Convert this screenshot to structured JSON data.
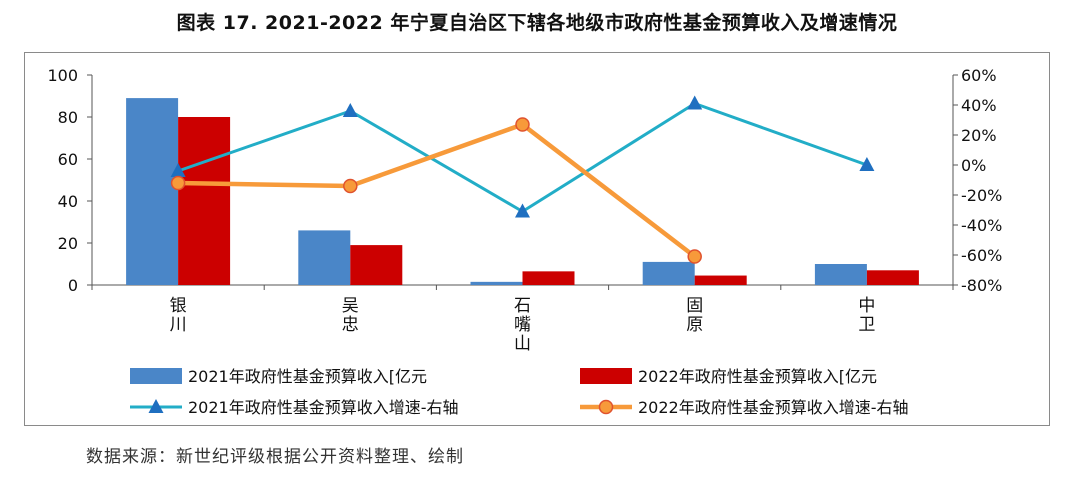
{
  "title": "图表 17. 2021-2022 年宁夏自治区下辖各地级市政府性基金预算收入及增速情况",
  "source": "数据来源：新世纪评级根据公开资料整理、绘制",
  "colors": {
    "bar_2021": "#4a86c8",
    "bar_2022": "#cc0000",
    "line_2021": "#22adc7",
    "line_2022": "#f79a3a",
    "marker_2021": "#1f6fc0",
    "marker_2022_edge": "#e0522e"
  },
  "chart_data": {
    "type": "bar+line",
    "categories": [
      "银川",
      "吴忠",
      "石嘴山",
      "固原",
      "中卫"
    ],
    "category_labels": [
      [
        "银",
        "川"
      ],
      [
        "吴",
        "忠"
      ],
      [
        "石",
        "嘴",
        "山"
      ],
      [
        "固",
        "原"
      ],
      [
        "中",
        "卫"
      ]
    ],
    "left_axis": {
      "ylim": [
        0,
        100
      ],
      "ticks": [
        0,
        20,
        40,
        60,
        80,
        100
      ]
    },
    "right_axis": {
      "ylim": [
        -80,
        60
      ],
      "ticks": [
        -80,
        -60,
        -40,
        -20,
        0,
        20,
        40,
        60
      ],
      "tick_labels": [
        "-80%",
        "-60%",
        "-40%",
        "-20%",
        "0%",
        "20%",
        "40%",
        "60%"
      ]
    },
    "series": [
      {
        "name": "2021年政府性基金预算收入[亿元",
        "type": "bar",
        "axis": "left",
        "values": [
          89,
          26,
          1.5,
          11,
          10
        ]
      },
      {
        "name": "2022年政府性基金预算收入[亿元",
        "type": "bar",
        "axis": "left",
        "values": [
          80,
          19,
          6.5,
          4.5,
          7
        ]
      },
      {
        "name": "2021年政府性基金预算收入增速-右轴",
        "type": "line",
        "axis": "right",
        "marker": "triangle",
        "values": [
          -4,
          36,
          -31,
          41,
          0
        ]
      },
      {
        "name": "2022年政府性基金预算收入增速-右轴",
        "type": "line",
        "axis": "right",
        "marker": "circle",
        "values": [
          -12,
          -14,
          27,
          -61,
          null
        ]
      }
    ]
  }
}
